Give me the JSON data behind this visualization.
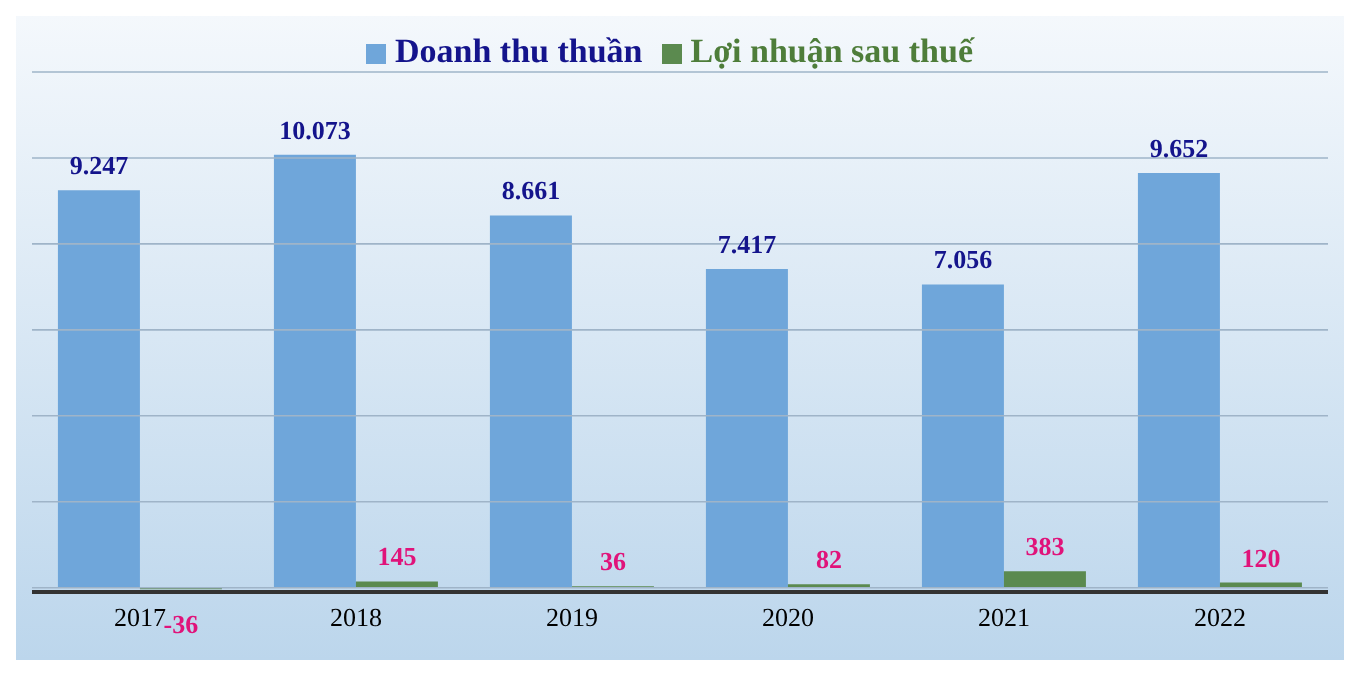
{
  "chart_data": {
    "type": "bar",
    "categories": [
      "2017",
      "2018",
      "2019",
      "2020",
      "2021",
      "2022"
    ],
    "series": [
      {
        "name": "Doanh thu thuần",
        "color": "#6fa6da",
        "values": [
          9247,
          10073,
          8661,
          7417,
          7056,
          9652
        ],
        "value_labels": [
          "9.247",
          "10.073",
          "8.661",
          "7.417",
          "7.056",
          "9.652"
        ]
      },
      {
        "name": "Lợi nhuận sau thuế",
        "color": "#5b8a4f",
        "values": [
          -36,
          145,
          36,
          82,
          383,
          120
        ],
        "value_labels": [
          "-36",
          "145",
          "36",
          "82",
          "383",
          "120"
        ]
      }
    ],
    "ylim": [
      -100,
      12000
    ],
    "yticks": [
      {
        "value": 0,
        "label": null
      },
      {
        "value": 2000,
        "label": null
      },
      {
        "value": 4000,
        "label": null
      },
      {
        "value": 6000,
        "label": null
      },
      {
        "value": 8000,
        "label": null
      },
      {
        "value": 10000,
        "label": null
      },
      {
        "value": 12000,
        "label": null
      }
    ],
    "grid": "y",
    "legend": "top",
    "tick_labels": "x"
  }
}
